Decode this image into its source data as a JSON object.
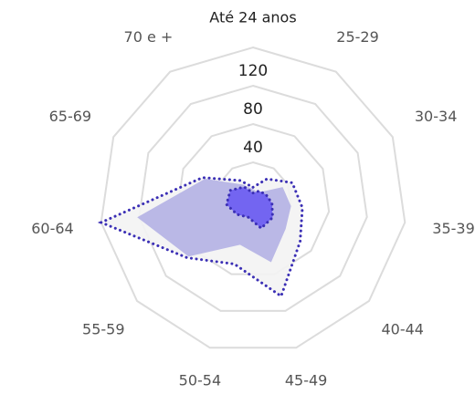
{
  "chart_data": {
    "type": "radar",
    "categories": [
      "Até 24 anos",
      "25-29",
      "30-34",
      "35-39",
      "40-44",
      "45-49",
      "50-54",
      "55-59",
      "60-64",
      "65-69",
      "70 e +"
    ],
    "ylim": [
      0,
      160
    ],
    "yticks": [
      40,
      80,
      120
    ],
    "grid": true,
    "series": [
      {
        "color": "#3b2fb5",
        "fill": "#f3f3f3",
        "line_style": "dotted",
        "values": [
          14,
          27,
          45,
          52,
          65,
          104,
          69,
          91,
          160,
          58,
          25
        ]
      },
      {
        "color": "#b4b1e4",
        "fill": "#b4b1e4",
        "line_style": "none",
        "values": [
          12,
          10,
          34,
          40,
          45,
          67,
          48,
          89,
          122,
          55,
          20
        ]
      },
      {
        "color": "#3b2fb5",
        "fill": "#6b5cf2",
        "line_style": "dotted",
        "values": [
          8,
          12,
          15,
          20,
          27,
          30,
          18,
          22,
          28,
          26,
          17
        ]
      }
    ]
  }
}
